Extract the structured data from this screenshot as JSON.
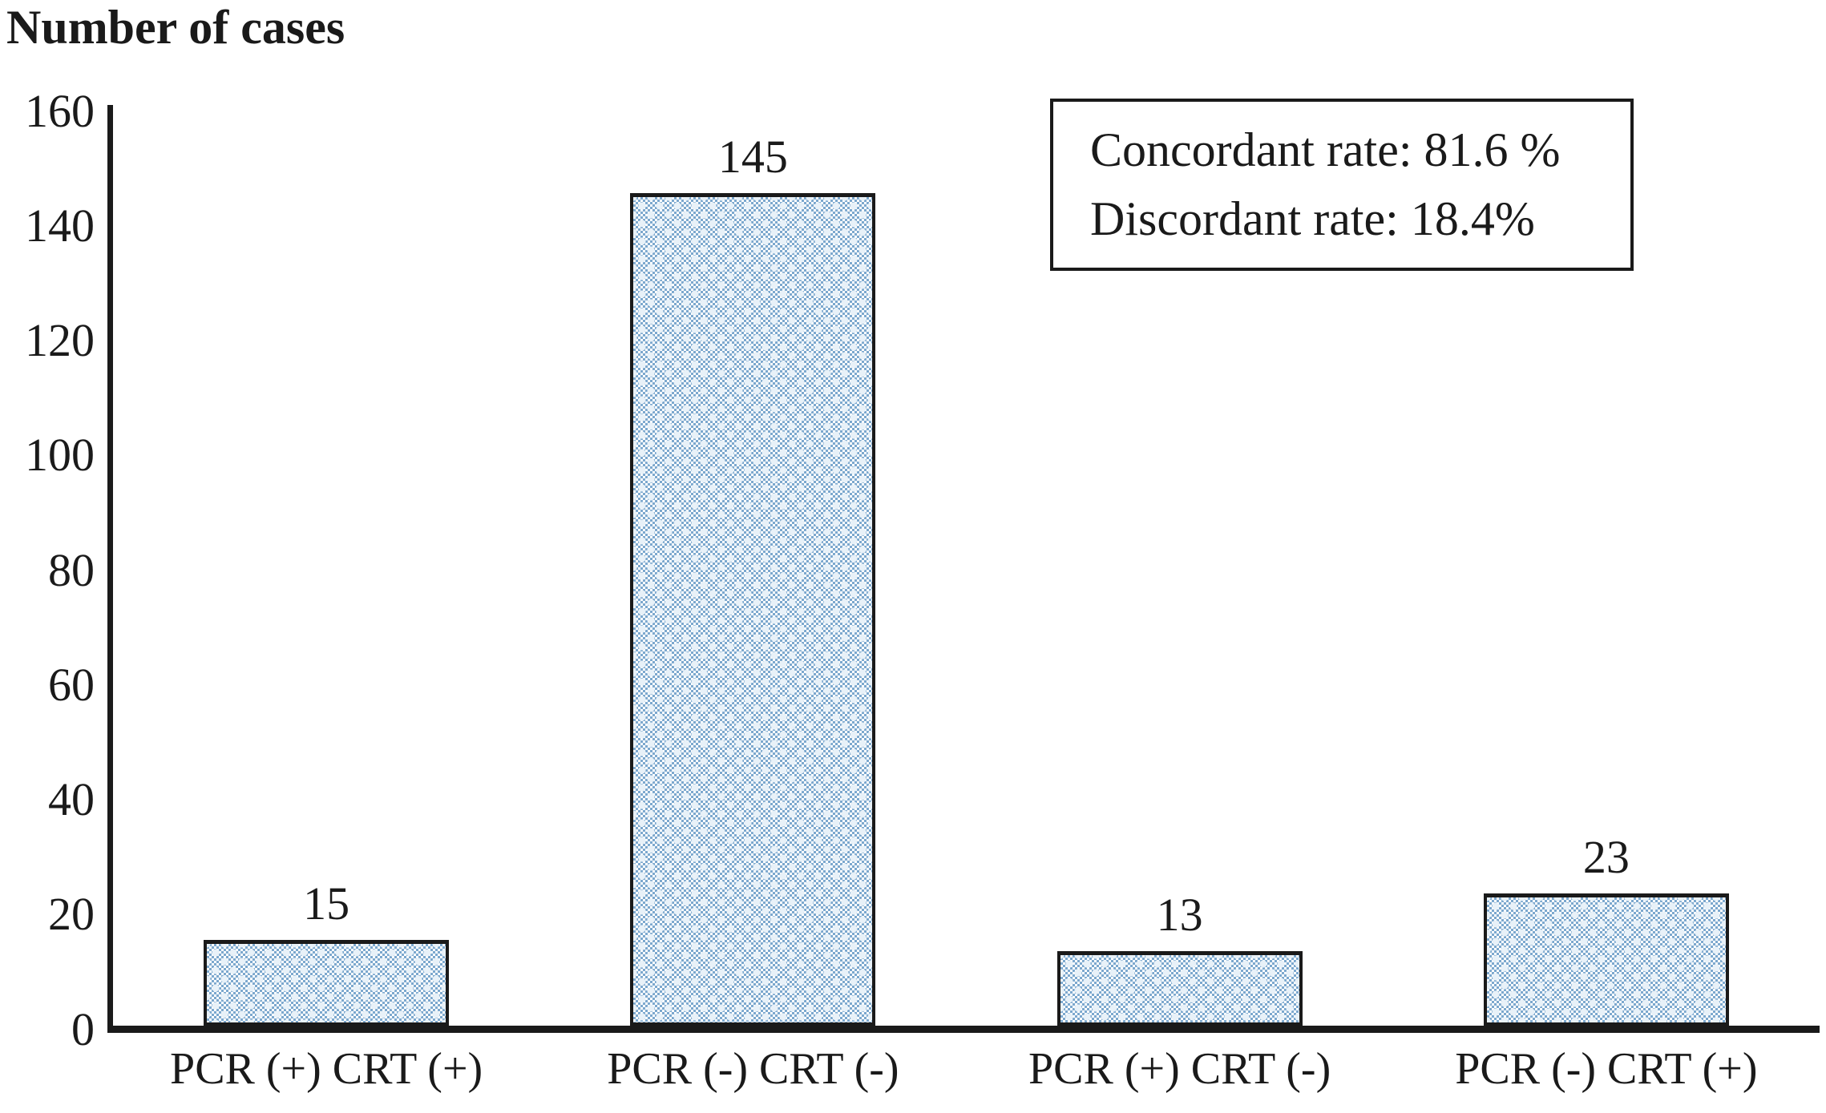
{
  "figure": {
    "background": "#FFFFFF"
  },
  "chart_data": {
    "type": "bar",
    "title": "Number of cases",
    "categories": [
      "PCR (+) CRT (+)",
      "PCR (-) CRT (-)",
      "PCR (+) CRT (-)",
      "PCR (-) CRT (+)"
    ],
    "values": [
      15,
      145,
      13,
      23
    ],
    "value_labels": [
      "15",
      "145",
      "13",
      "23"
    ],
    "xlabel": "",
    "ylabel": "Number of cases",
    "ylim": [
      0,
      160
    ],
    "ytick_step": 20,
    "yticks_top_to_bottom": [
      "160",
      "140",
      "120",
      "100",
      "80",
      "60",
      "40",
      "20",
      "0"
    ],
    "grid": false,
    "legend": "none",
    "annotation_box": {
      "position": "top-right",
      "lines": [
        "Concordant rate: 81.6 %",
        "Discordant rate: 18.4%"
      ]
    },
    "colors": {
      "bar_fill": "#7CA8CE",
      "bar_pattern_dot": "#E8F1F8",
      "bar_border": "#1A1A1A",
      "axis": "#1A1A1A",
      "text": "#1A1A1A",
      "background": "#FFFFFF"
    },
    "bar_style": "fine blue-white checker pattern with light dot clusters, black outline"
  }
}
